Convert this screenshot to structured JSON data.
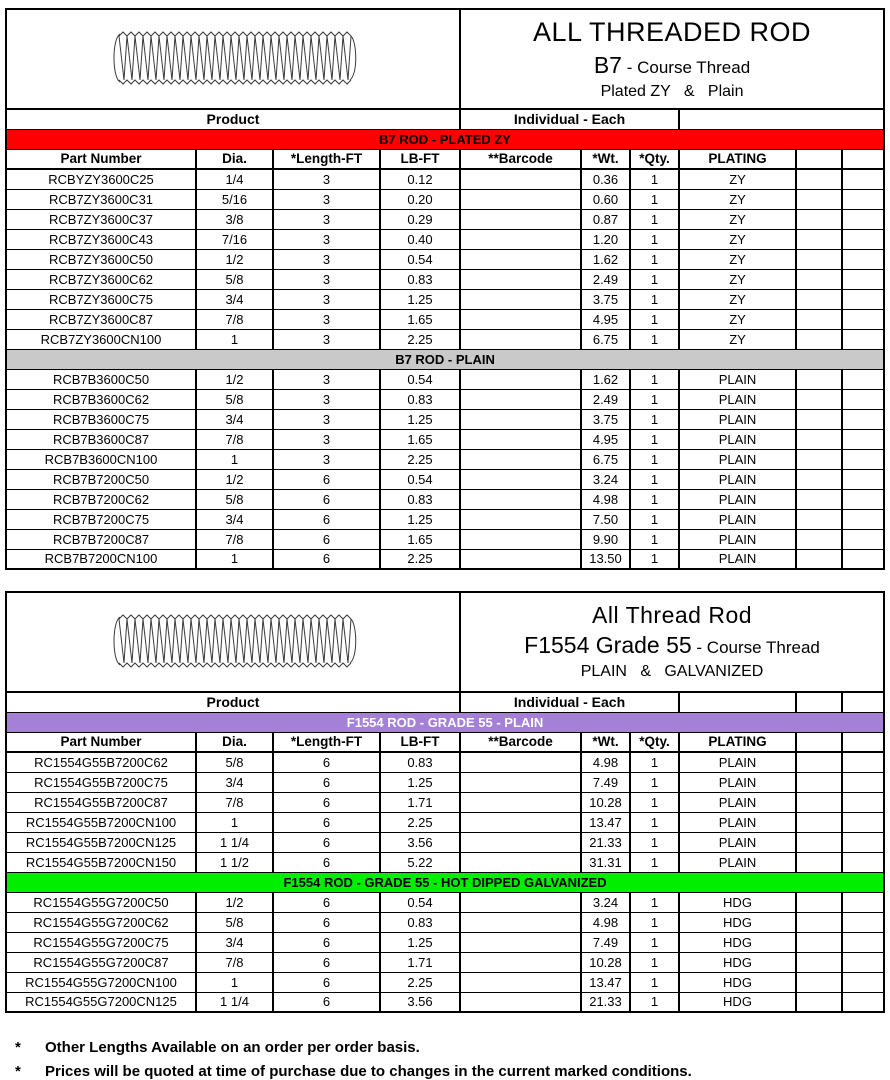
{
  "footnotes": [
    {
      "marker": "*",
      "text": "Other Lengths Available on an order per order basis."
    },
    {
      "marker": "*",
      "text": "Prices will be quoted at time of purchase due to changes in the current marked conditions."
    }
  ],
  "colors": {
    "band_red": "#FF0000",
    "band_gray": "#C9C9C9",
    "band_purple": "#A481D7",
    "band_green": "#00EE00",
    "band_text_dark": "#000000",
    "band_text_light": "#FFFFFF"
  },
  "tables": [
    {
      "id": "b7-rod",
      "title": {
        "line1": "ALL THREADED ROD",
        "line2_main": "B7",
        "line2_sub": " - Course Thread",
        "line3": "Plated ZY   &   Plain"
      },
      "product_header": {
        "product": "Product",
        "individual": "Individual - Each"
      },
      "columns": [
        "Part Number",
        "Dia.",
        "*Length-FT",
        "LB-FT",
        "**Barcode",
        "*Wt.",
        "*Qty.",
        "PLATING"
      ],
      "extra_product_cells": false,
      "sections": [
        {
          "band": {
            "label": "B7 ROD - PLATED ZY",
            "bg": "#FF0000",
            "fg": "#000000"
          },
          "has_column_header": true,
          "rows": [
            {
              "part_number": "RCBYZY3600C25",
              "dia": "1/4",
              "length_ft": "3",
              "lb_ft": "0.12",
              "barcode": "",
              "wt": "0.36",
              "qty": "1",
              "plating": "ZY"
            },
            {
              "part_number": "RCB7ZY3600C31",
              "dia": "5/16",
              "length_ft": "3",
              "lb_ft": "0.20",
              "barcode": "",
              "wt": "0.60",
              "qty": "1",
              "plating": "ZY"
            },
            {
              "part_number": "RCB7ZY3600C37",
              "dia": "3/8",
              "length_ft": "3",
              "lb_ft": "0.29",
              "barcode": "",
              "wt": "0.87",
              "qty": "1",
              "plating": "ZY"
            },
            {
              "part_number": "RCB7ZY3600C43",
              "dia": "7/16",
              "length_ft": "3",
              "lb_ft": "0.40",
              "barcode": "",
              "wt": "1.20",
              "qty": "1",
              "plating": "ZY"
            },
            {
              "part_number": "RCB7ZY3600C50",
              "dia": "1/2",
              "length_ft": "3",
              "lb_ft": "0.54",
              "barcode": "",
              "wt": "1.62",
              "qty": "1",
              "plating": "ZY"
            },
            {
              "part_number": "RCB7ZY3600C62",
              "dia": "5/8",
              "length_ft": "3",
              "lb_ft": "0.83",
              "barcode": "",
              "wt": "2.49",
              "qty": "1",
              "plating": "ZY"
            },
            {
              "part_number": "RCB7ZY3600C75",
              "dia": "3/4",
              "length_ft": "3",
              "lb_ft": "1.25",
              "barcode": "",
              "wt": "3.75",
              "qty": "1",
              "plating": "ZY"
            },
            {
              "part_number": "RCB7ZY3600C87",
              "dia": "7/8",
              "length_ft": "3",
              "lb_ft": "1.65",
              "barcode": "",
              "wt": "4.95",
              "qty": "1",
              "plating": "ZY"
            },
            {
              "part_number": "RCB7ZY3600CN100",
              "dia": "1",
              "length_ft": "3",
              "lb_ft": "2.25",
              "barcode": "",
              "wt": "6.75",
              "qty": "1",
              "plating": "ZY"
            }
          ]
        },
        {
          "band": {
            "label": "B7 ROD - PLAIN",
            "bg": "#C9C9C9",
            "fg": "#000000"
          },
          "has_column_header": false,
          "rows": [
            {
              "part_number": "RCB7B3600C50",
              "dia": "1/2",
              "length_ft": "3",
              "lb_ft": "0.54",
              "barcode": "",
              "wt": "1.62",
              "qty": "1",
              "plating": "PLAIN"
            },
            {
              "part_number": "RCB7B3600C62",
              "dia": "5/8",
              "length_ft": "3",
              "lb_ft": "0.83",
              "barcode": "",
              "wt": "2.49",
              "qty": "1",
              "plating": "PLAIN"
            },
            {
              "part_number": "RCB7B3600C75",
              "dia": "3/4",
              "length_ft": "3",
              "lb_ft": "1.25",
              "barcode": "",
              "wt": "3.75",
              "qty": "1",
              "plating": "PLAIN"
            },
            {
              "part_number": "RCB7B3600C87",
              "dia": "7/8",
              "length_ft": "3",
              "lb_ft": "1.65",
              "barcode": "",
              "wt": "4.95",
              "qty": "1",
              "plating": "PLAIN"
            },
            {
              "part_number": "RCB7B3600CN100",
              "dia": "1",
              "length_ft": "3",
              "lb_ft": "2.25",
              "barcode": "",
              "wt": "6.75",
              "qty": "1",
              "plating": "PLAIN"
            },
            {
              "part_number": "RCB7B7200C50",
              "dia": "1/2",
              "length_ft": "6",
              "lb_ft": "0.54",
              "barcode": "",
              "wt": "3.24",
              "qty": "1",
              "plating": "PLAIN"
            },
            {
              "part_number": "RCB7B7200C62",
              "dia": "5/8",
              "length_ft": "6",
              "lb_ft": "0.83",
              "barcode": "",
              "wt": "4.98",
              "qty": "1",
              "plating": "PLAIN"
            },
            {
              "part_number": "RCB7B7200C75",
              "dia": "3/4",
              "length_ft": "6",
              "lb_ft": "1.25",
              "barcode": "",
              "wt": "7.50",
              "qty": "1",
              "plating": "PLAIN"
            },
            {
              "part_number": "RCB7B7200C87",
              "dia": "7/8",
              "length_ft": "6",
              "lb_ft": "1.65",
              "barcode": "",
              "wt": "9.90",
              "qty": "1",
              "plating": "PLAIN"
            },
            {
              "part_number": "RCB7B7200CN100",
              "dia": "1",
              "length_ft": "6",
              "lb_ft": "2.25",
              "barcode": "",
              "wt": "13.50",
              "qty": "1",
              "plating": "PLAIN"
            }
          ]
        }
      ]
    },
    {
      "id": "f1554-rod",
      "title": {
        "line1": "All Thread Rod",
        "line2_main": "F1554 Grade 55",
        "line2_sub": " - Course Thread",
        "line3": "PLAIN   &   GALVANIZED"
      },
      "product_header": {
        "product": "Product",
        "individual": "Individual - Each"
      },
      "columns": [
        "Part Number",
        "Dia.",
        "*Length-FT",
        "LB-FT",
        "**Barcode",
        "*Wt.",
        "*Qty.",
        "PLATING"
      ],
      "extra_product_cells": true,
      "sections": [
        {
          "band": {
            "label": "F1554 ROD - GRADE 55  -  PLAIN",
            "bg": "#A481D7",
            "fg": "#FFFFFF"
          },
          "has_column_header": true,
          "rows": [
            {
              "part_number": "RC1554G55B7200C62",
              "dia": "5/8",
              "length_ft": "6",
              "lb_ft": "0.83",
              "barcode": "",
              "wt": "4.98",
              "qty": "1",
              "plating": "PLAIN"
            },
            {
              "part_number": "RC1554G55B7200C75",
              "dia": "3/4",
              "length_ft": "6",
              "lb_ft": "1.25",
              "barcode": "",
              "wt": "7.49",
              "qty": "1",
              "plating": "PLAIN"
            },
            {
              "part_number": "RC1554G55B7200C87",
              "dia": "7/8",
              "length_ft": "6",
              "lb_ft": "1.71",
              "barcode": "",
              "wt": "10.28",
              "qty": "1",
              "plating": "PLAIN"
            },
            {
              "part_number": "RC1554G55B7200CN100",
              "dia": "1",
              "length_ft": "6",
              "lb_ft": "2.25",
              "barcode": "",
              "wt": "13.47",
              "qty": "1",
              "plating": "PLAIN"
            },
            {
              "part_number": "RC1554G55B7200CN125",
              "dia": "1 1/4",
              "length_ft": "6",
              "lb_ft": "3.56",
              "barcode": "",
              "wt": "21.33",
              "qty": "1",
              "plating": "PLAIN"
            },
            {
              "part_number": "RC1554G55B7200CN150",
              "dia": "1 1/2",
              "length_ft": "6",
              "lb_ft": "5.22",
              "barcode": "",
              "wt": "31.31",
              "qty": "1",
              "plating": "PLAIN"
            }
          ]
        },
        {
          "band": {
            "label": "F1554 ROD - GRADE 55  -  HOT DIPPED GALVANIZED",
            "bg": "#00EE00",
            "fg": "#000000"
          },
          "has_column_header": false,
          "rows": [
            {
              "part_number": "RC1554G55G7200C50",
              "dia": "1/2",
              "length_ft": "6",
              "lb_ft": "0.54",
              "barcode": "",
              "wt": "3.24",
              "qty": "1",
              "plating": "HDG"
            },
            {
              "part_number": "RC1554G55G7200C62",
              "dia": "5/8",
              "length_ft": "6",
              "lb_ft": "0.83",
              "barcode": "",
              "wt": "4.98",
              "qty": "1",
              "plating": "HDG"
            },
            {
              "part_number": "RC1554G55G7200C75",
              "dia": "3/4",
              "length_ft": "6",
              "lb_ft": "1.25",
              "barcode": "",
              "wt": "7.49",
              "qty": "1",
              "plating": "HDG"
            },
            {
              "part_number": "RC1554G55G7200C87",
              "dia": "7/8",
              "length_ft": "6",
              "lb_ft": "1.71",
              "barcode": "",
              "wt": "10.28",
              "qty": "1",
              "plating": "HDG"
            },
            {
              "part_number": "RC1554G55G7200CN100",
              "dia": "1",
              "length_ft": "6",
              "lb_ft": "2.25",
              "barcode": "",
              "wt": "13.47",
              "qty": "1",
              "plating": "HDG"
            },
            {
              "part_number": "RC1554G55G7200CN125",
              "dia": "1 1/4",
              "length_ft": "6",
              "lb_ft": "3.56",
              "barcode": "",
              "wt": "21.33",
              "qty": "1",
              "plating": "HDG"
            }
          ]
        }
      ]
    }
  ]
}
